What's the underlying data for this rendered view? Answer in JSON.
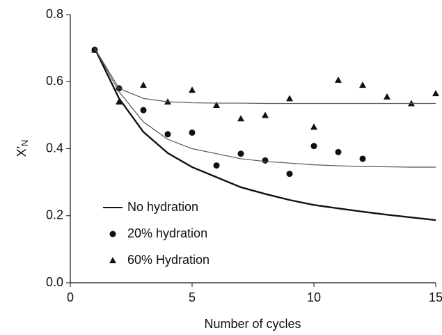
{
  "chart_data": {
    "type": "line",
    "x_label": "Number of cycles",
    "y_label": "X'",
    "y_label_sub": "N",
    "x": [
      1,
      2,
      3,
      4,
      5,
      6,
      7,
      8,
      9,
      10,
      11,
      12,
      13,
      14,
      15
    ],
    "series": [
      {
        "name": "No hydration",
        "color": "#111111",
        "style": "line",
        "values": [
          0.7,
          0.55,
          0.45,
          0.387,
          0.345,
          0.315,
          0.285,
          0.265,
          0.247,
          0.232,
          0.222,
          0.212,
          0.203,
          0.195,
          0.187
        ]
      },
      {
        "name": "20% hydration",
        "color": "#111111",
        "style": "circle",
        "values": [
          0.695,
          0.58,
          0.515,
          0.443,
          0.448,
          0.35,
          0.385,
          0.365,
          0.325,
          0.408,
          0.39,
          0.37,
          null,
          null,
          null
        ]
      },
      {
        "name": "60% Hydration",
        "color": "#111111",
        "style": "triangle",
        "values": [
          0.695,
          0.54,
          0.59,
          0.54,
          0.575,
          0.53,
          0.49,
          0.5,
          0.55,
          0.465,
          0.605,
          0.59,
          0.555,
          0.535,
          0.565
        ]
      },
      {
        "color": "#555555",
        "style": "thin",
        "values": [
          0.7,
          0.57,
          0.48,
          0.428,
          0.4,
          0.385,
          0.37,
          0.362,
          0.357,
          0.352,
          0.349,
          0.347,
          0.346,
          0.345,
          0.345
        ]
      },
      {
        "color": "#555555",
        "style": "thin",
        "values": [
          0.7,
          0.58,
          0.55,
          0.54,
          0.537,
          0.536,
          0.536,
          0.535,
          0.535,
          0.535,
          0.535,
          0.535,
          0.535,
          0.535,
          0.535
        ]
      }
    ],
    "xlim": [
      0,
      15
    ],
    "xticks": [
      0,
      5,
      10,
      15
    ],
    "ylim": [
      0,
      0.8
    ],
    "yticks": [
      {
        "value": 0,
        "label": "0.0"
      },
      0.2,
      0.4,
      0.6,
      0.8
    ],
    "legend": "lower left"
  }
}
